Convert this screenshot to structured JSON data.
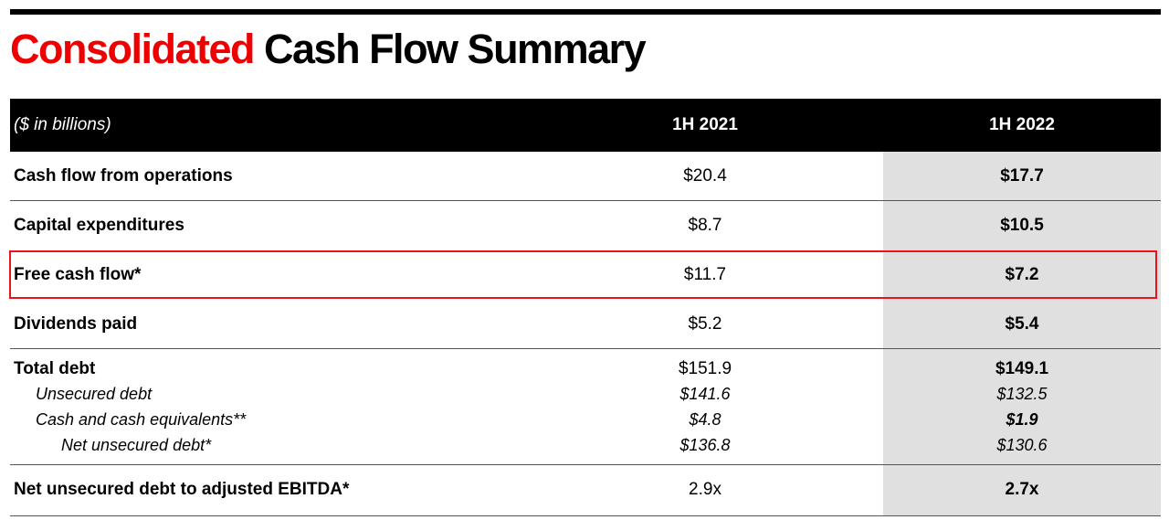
{
  "title": {
    "accent": "Consolidated",
    "rest": "Cash Flow Summary"
  },
  "colors": {
    "accent": "#ee0000",
    "header_bg": "#000000",
    "header_text": "#ffffff",
    "shade": "#e0e0e0",
    "highlight": "#e8141c"
  },
  "table": {
    "unit_label": "($ in billions)",
    "col1": "1H 2021",
    "col2": "1H 2022",
    "rows": [
      {
        "label": "Cash flow from operations",
        "v1": "$20.4",
        "v2": "$17.7"
      },
      {
        "label": "Capital expenditures",
        "v1": "$8.7",
        "v2": "$10.5"
      },
      {
        "label": "Free cash flow*",
        "v1": "$11.7",
        "v2": "$7.2"
      },
      {
        "label": "Dividends paid",
        "v1": "$5.2",
        "v2": "$5.4"
      },
      {
        "label": "Total debt",
        "v1": "$151.9",
        "v2": "$149.1"
      },
      {
        "label": "Net unsecured debt to adjusted EBITDA*",
        "v1": "2.9x",
        "v2": "2.7x"
      }
    ],
    "subrows": [
      {
        "label": "Unsecured debt",
        "v1": "$141.6",
        "v2": "$132.5"
      },
      {
        "label": "Cash and cash equivalents**",
        "v1": "$4.8",
        "v2": "$1.9"
      },
      {
        "label": "Net unsecured debt*",
        "v1": "$136.8",
        "v2": "$130.6"
      }
    ]
  }
}
